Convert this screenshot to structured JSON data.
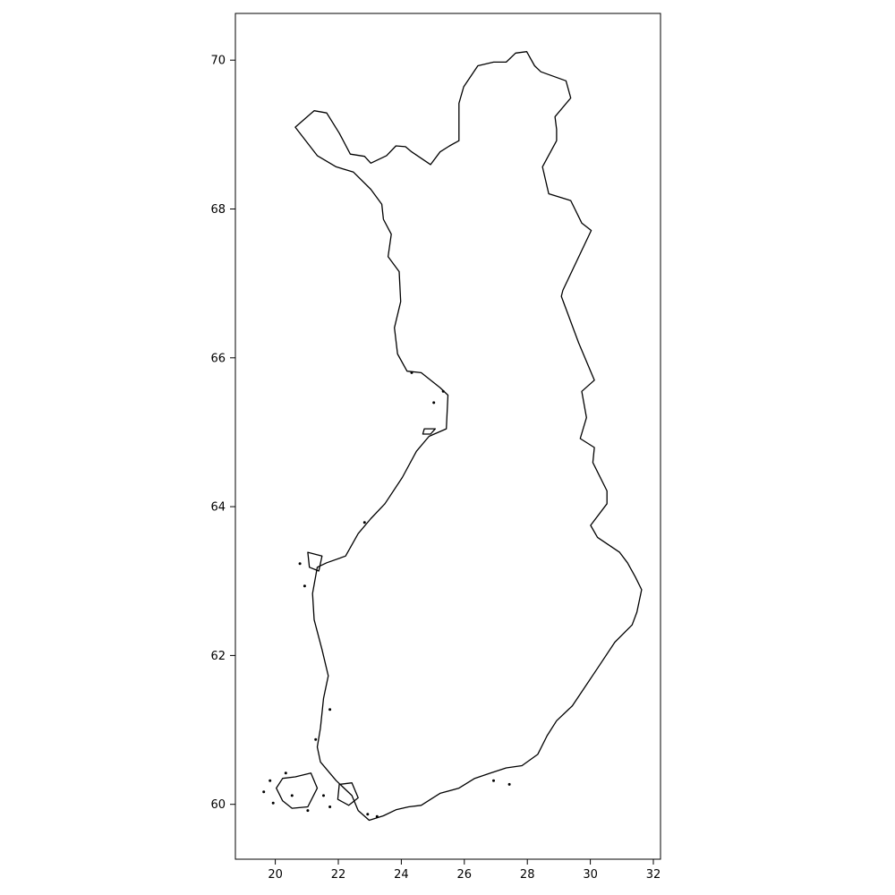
{
  "map": {
    "x_ticks": [
      "20",
      "22",
      "24",
      "26",
      "28",
      "30",
      "32"
    ],
    "y_ticks": [
      "60",
      "62",
      "64",
      "66",
      "68",
      "70"
    ],
    "xlim": [
      18.7,
      32.2
    ],
    "ylim": [
      59.3,
      70.6
    ],
    "outline_color": "#000000",
    "background": "#ffffff",
    "coastline": [
      [
        20.6,
        69.08
      ],
      [
        21.2,
        69.3
      ],
      [
        21.6,
        69.27
      ],
      [
        22.0,
        69.0
      ],
      [
        22.35,
        68.72
      ],
      [
        22.8,
        68.69
      ],
      [
        23.0,
        68.6
      ],
      [
        23.5,
        68.7
      ],
      [
        23.8,
        68.83
      ],
      [
        24.1,
        68.82
      ],
      [
        24.3,
        68.75
      ],
      [
        24.9,
        68.58
      ],
      [
        25.2,
        68.75
      ],
      [
        25.5,
        68.83
      ],
      [
        25.8,
        68.9
      ],
      [
        25.8,
        69.1
      ],
      [
        25.8,
        69.4
      ],
      [
        25.95,
        69.62
      ],
      [
        26.4,
        69.9
      ],
      [
        26.9,
        69.95
      ],
      [
        27.3,
        69.95
      ],
      [
        27.6,
        70.07
      ],
      [
        27.95,
        70.09
      ],
      [
        28.2,
        69.9
      ],
      [
        28.4,
        69.82
      ],
      [
        29.2,
        69.7
      ],
      [
        29.35,
        69.47
      ],
      [
        28.85,
        69.22
      ],
      [
        28.9,
        69.05
      ],
      [
        28.9,
        68.9
      ],
      [
        28.45,
        68.55
      ],
      [
        28.65,
        68.19
      ],
      [
        29.35,
        68.1
      ],
      [
        29.7,
        67.8
      ],
      [
        30.0,
        67.7
      ],
      [
        29.1,
        66.9
      ],
      [
        29.05,
        66.82
      ],
      [
        29.6,
        66.2
      ],
      [
        30.1,
        65.7
      ],
      [
        29.7,
        65.55
      ],
      [
        29.85,
        65.2
      ],
      [
        29.65,
        64.92
      ],
      [
        30.1,
        64.8
      ],
      [
        30.05,
        64.6
      ],
      [
        30.5,
        64.22
      ],
      [
        30.5,
        64.05
      ],
      [
        29.98,
        63.76
      ],
      [
        30.2,
        63.6
      ],
      [
        30.9,
        63.4
      ],
      [
        31.15,
        63.26
      ],
      [
        31.4,
        63.07
      ],
      [
        31.6,
        62.9
      ],
      [
        31.45,
        62.6
      ],
      [
        31.3,
        62.43
      ],
      [
        30.75,
        62.2
      ],
      [
        30.2,
        61.85
      ],
      [
        29.4,
        61.35
      ],
      [
        28.9,
        61.15
      ],
      [
        28.6,
        60.95
      ],
      [
        28.3,
        60.7
      ],
      [
        27.8,
        60.55
      ],
      [
        27.3,
        60.52
      ],
      [
        26.8,
        60.45
      ],
      [
        26.3,
        60.38
      ],
      [
        25.8,
        60.25
      ],
      [
        25.2,
        60.18
      ],
      [
        24.6,
        60.02
      ],
      [
        24.2,
        60.0
      ],
      [
        23.8,
        59.96
      ],
      [
        23.4,
        59.88
      ],
      [
        22.95,
        59.82
      ],
      [
        22.6,
        59.95
      ],
      [
        22.4,
        60.15
      ],
      [
        21.9,
        60.35
      ],
      [
        21.4,
        60.6
      ],
      [
        21.3,
        60.8
      ],
      [
        21.4,
        61.05
      ],
      [
        21.5,
        61.45
      ],
      [
        21.65,
        61.75
      ],
      [
        21.45,
        62.1
      ],
      [
        21.2,
        62.5
      ],
      [
        21.15,
        62.85
      ],
      [
        21.3,
        63.2
      ],
      [
        21.6,
        63.26
      ],
      [
        22.2,
        63.35
      ],
      [
        22.6,
        63.65
      ],
      [
        23.0,
        63.85
      ],
      [
        23.45,
        64.05
      ],
      [
        24.0,
        64.4
      ],
      [
        24.45,
        64.75
      ],
      [
        24.85,
        64.95
      ],
      [
        25.4,
        65.05
      ],
      [
        25.45,
        65.5
      ],
      [
        25.2,
        65.6
      ],
      [
        24.6,
        65.8
      ],
      [
        24.15,
        65.82
      ],
      [
        23.85,
        66.05
      ],
      [
        23.75,
        66.4
      ],
      [
        23.95,
        66.75
      ],
      [
        23.9,
        67.15
      ],
      [
        23.55,
        67.35
      ],
      [
        23.65,
        67.65
      ],
      [
        23.4,
        67.85
      ],
      [
        23.35,
        68.05
      ],
      [
        23.0,
        68.25
      ],
      [
        22.45,
        68.48
      ],
      [
        21.9,
        68.55
      ],
      [
        21.3,
        68.7
      ],
      [
        20.6,
        69.08
      ]
    ],
    "islands": [
      [
        [
          20.6,
          60.4
        ],
        [
          21.1,
          60.45
        ],
        [
          21.3,
          60.25
        ],
        [
          21.0,
          60.0
        ],
        [
          20.5,
          59.98
        ],
        [
          20.2,
          60.08
        ],
        [
          20.0,
          60.25
        ],
        [
          20.2,
          60.38
        ],
        [
          20.6,
          60.4
        ]
      ],
      [
        [
          22.0,
          60.3
        ],
        [
          22.4,
          60.32
        ],
        [
          22.6,
          60.12
        ],
        [
          22.3,
          60.02
        ],
        [
          21.95,
          60.1
        ],
        [
          22.0,
          60.3
        ]
      ],
      [
        [
          21.0,
          63.4
        ],
        [
          21.45,
          63.35
        ],
        [
          21.35,
          63.15
        ],
        [
          21.05,
          63.2
        ],
        [
          21.0,
          63.4
        ]
      ],
      [
        [
          24.7,
          65.05
        ],
        [
          25.05,
          65.05
        ],
        [
          24.9,
          64.98
        ],
        [
          24.65,
          64.98
        ],
        [
          24.7,
          65.05
        ]
      ]
    ],
    "islets": [
      [
        19.6,
        60.2
      ],
      [
        19.8,
        60.35
      ],
      [
        20.3,
        60.45
      ],
      [
        21.5,
        60.15
      ],
      [
        21.7,
        60.0
      ],
      [
        22.9,
        59.9
      ],
      [
        23.2,
        59.87
      ],
      [
        26.9,
        60.35
      ],
      [
        27.4,
        60.3
      ],
      [
        20.75,
        63.25
      ],
      [
        20.9,
        62.95
      ],
      [
        21.7,
        61.3
      ],
      [
        21.25,
        60.9
      ],
      [
        25.0,
        65.4
      ],
      [
        25.3,
        65.55
      ],
      [
        24.3,
        65.8
      ],
      [
        22.8,
        63.8
      ],
      [
        20.5,
        60.15
      ],
      [
        19.9,
        60.05
      ],
      [
        21.0,
        59.95
      ]
    ]
  }
}
